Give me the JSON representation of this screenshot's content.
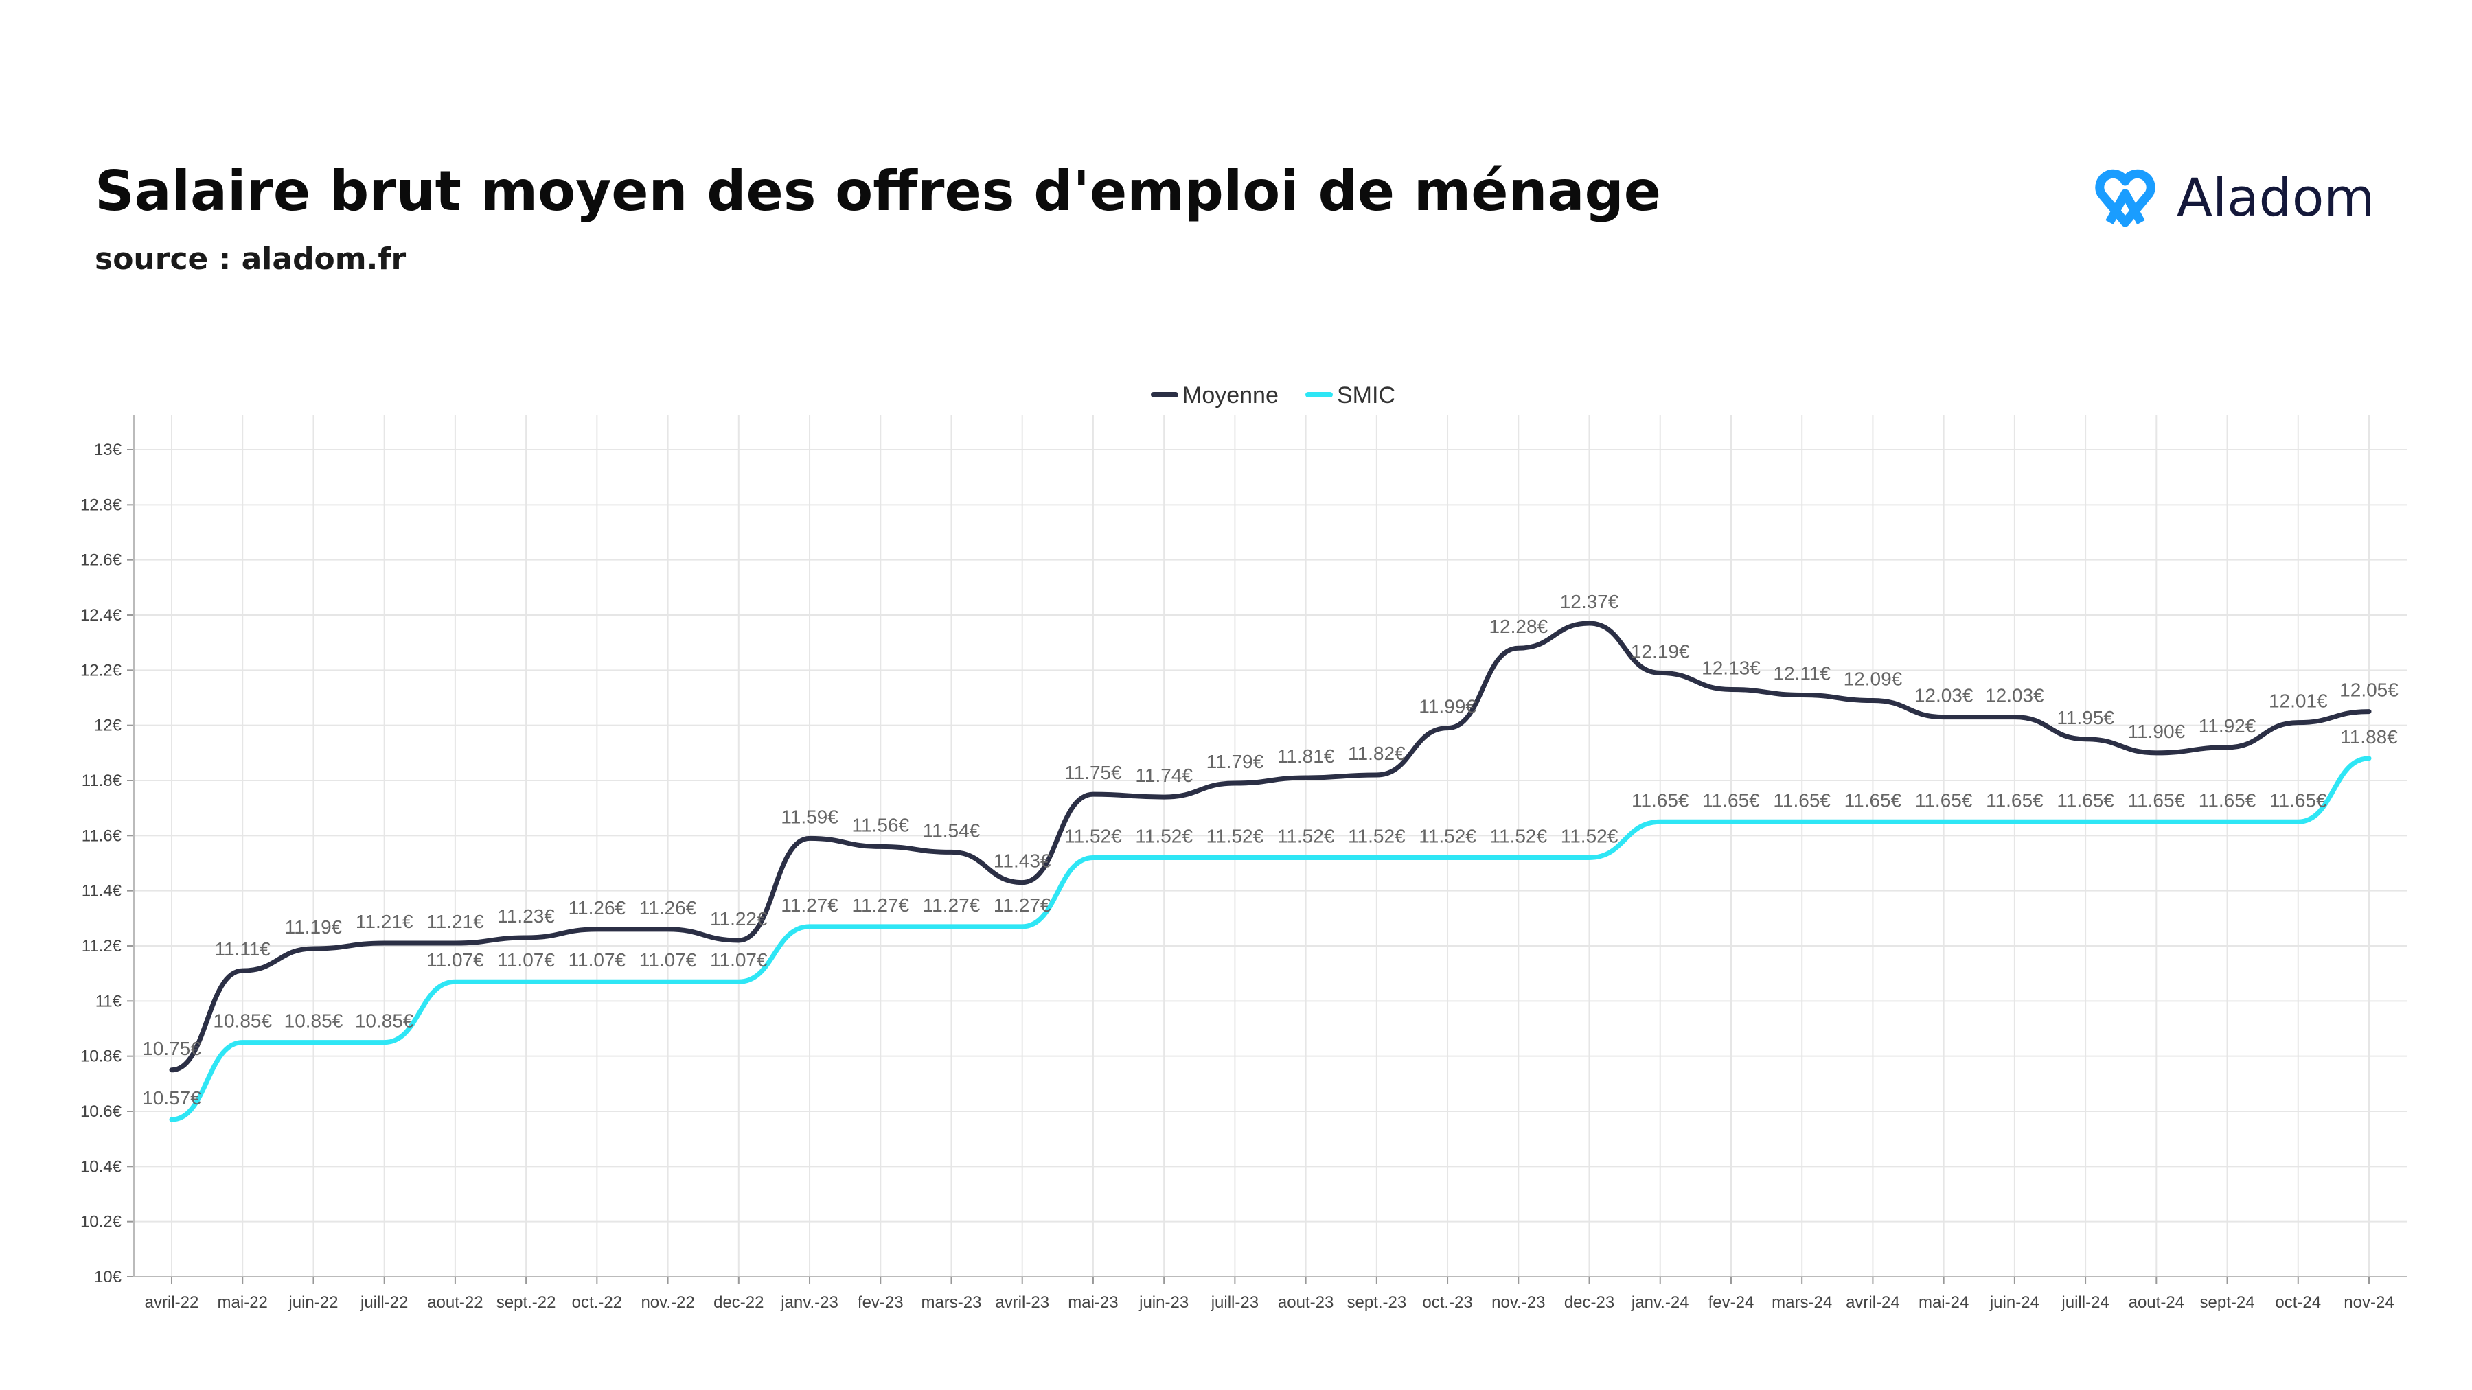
{
  "header": {
    "title": "Salaire brut moyen des offres d'emploi de ménage",
    "source": "source : aladom.fr"
  },
  "brand": {
    "name": "Aladom",
    "icon": "aladom-logo-icon",
    "color": "#1a9dff"
  },
  "chart_data": {
    "type": "line",
    "categories": [
      "avril-22",
      "mai-22",
      "juin-22",
      "juill-22",
      "aout-22",
      "sept.-22",
      "oct.-22",
      "nov.-22",
      "dec-22",
      "janv.-23",
      "fev-23",
      "mars-23",
      "avril-23",
      "mai-23",
      "juin-23",
      "juill-23",
      "aout-23",
      "sept.-23",
      "oct.-23",
      "nov.-23",
      "dec-23",
      "janv.-24",
      "fev-24",
      "mars-24",
      "avril-24",
      "mai-24",
      "juin-24",
      "juill-24",
      "aout-24",
      "sept-24",
      "oct-24",
      "nov-24"
    ],
    "yticks": [
      "10€",
      "10.2€",
      "10.4€",
      "10.6€",
      "10.8€",
      "11€",
      "11.2€",
      "11.4€",
      "11.6€",
      "11.8€",
      "12€",
      "12.2€",
      "12.4€",
      "12.6€",
      "12.8€",
      "13€"
    ],
    "ylim": [
      10,
      13
    ],
    "grid": true,
    "legend_position": "top-center",
    "series": [
      {
        "name": "Moyenne",
        "color": "#2b2f45",
        "values": [
          10.75,
          11.11,
          11.19,
          11.21,
          11.21,
          11.23,
          11.26,
          11.26,
          11.22,
          11.59,
          11.56,
          11.54,
          11.43,
          11.75,
          11.74,
          11.79,
          11.81,
          11.82,
          11.99,
          12.28,
          12.37,
          12.19,
          12.13,
          12.11,
          12.09,
          12.03,
          12.03,
          11.95,
          11.9,
          11.92,
          12.01,
          12.05
        ],
        "labels": [
          "10.75€",
          "11.11€",
          "11.19€",
          "11.21€",
          "11.21€",
          "11.23€",
          "11.26€",
          "11.26€",
          "11.22€",
          "11.59€",
          "11.56€",
          "11.54€",
          "11.43€",
          "11.75€",
          "11.74€",
          "11.79€",
          "11.81€",
          "11.82€",
          "11.99€",
          "12.28€",
          "12.37€",
          "12.19€",
          "12.13€",
          "12.11€",
          "12.09€",
          "12.03€",
          "12.03€",
          "11.95€",
          "11.90€",
          "11.92€",
          "12.01€",
          "12.05€"
        ]
      },
      {
        "name": "SMIC",
        "color": "#2ee6f5",
        "values": [
          10.57,
          10.85,
          10.85,
          10.85,
          11.07,
          11.07,
          11.07,
          11.07,
          11.07,
          11.27,
          11.27,
          11.27,
          11.27,
          11.52,
          11.52,
          11.52,
          11.52,
          11.52,
          11.52,
          11.52,
          11.52,
          11.65,
          11.65,
          11.65,
          11.65,
          11.65,
          11.65,
          11.65,
          11.65,
          11.65,
          11.65,
          11.88
        ],
        "labels": [
          "10.57€",
          "10.85€",
          "10.85€",
          "10.85€",
          "11.07€",
          "11.07€",
          "11.07€",
          "11.07€",
          "11.07€",
          "11.27€",
          "11.27€",
          "11.27€",
          "11.27€",
          "11.52€",
          "11.52€",
          "11.52€",
          "11.52€",
          "11.52€",
          "11.52€",
          "11.52€",
          "11.52€",
          "11.65€",
          "11.65€",
          "11.65€",
          "11.65€",
          "11.65€",
          "11.65€",
          "11.65€",
          "11.65€",
          "11.65€",
          "11.65€",
          "11.88€"
        ]
      }
    ]
  }
}
